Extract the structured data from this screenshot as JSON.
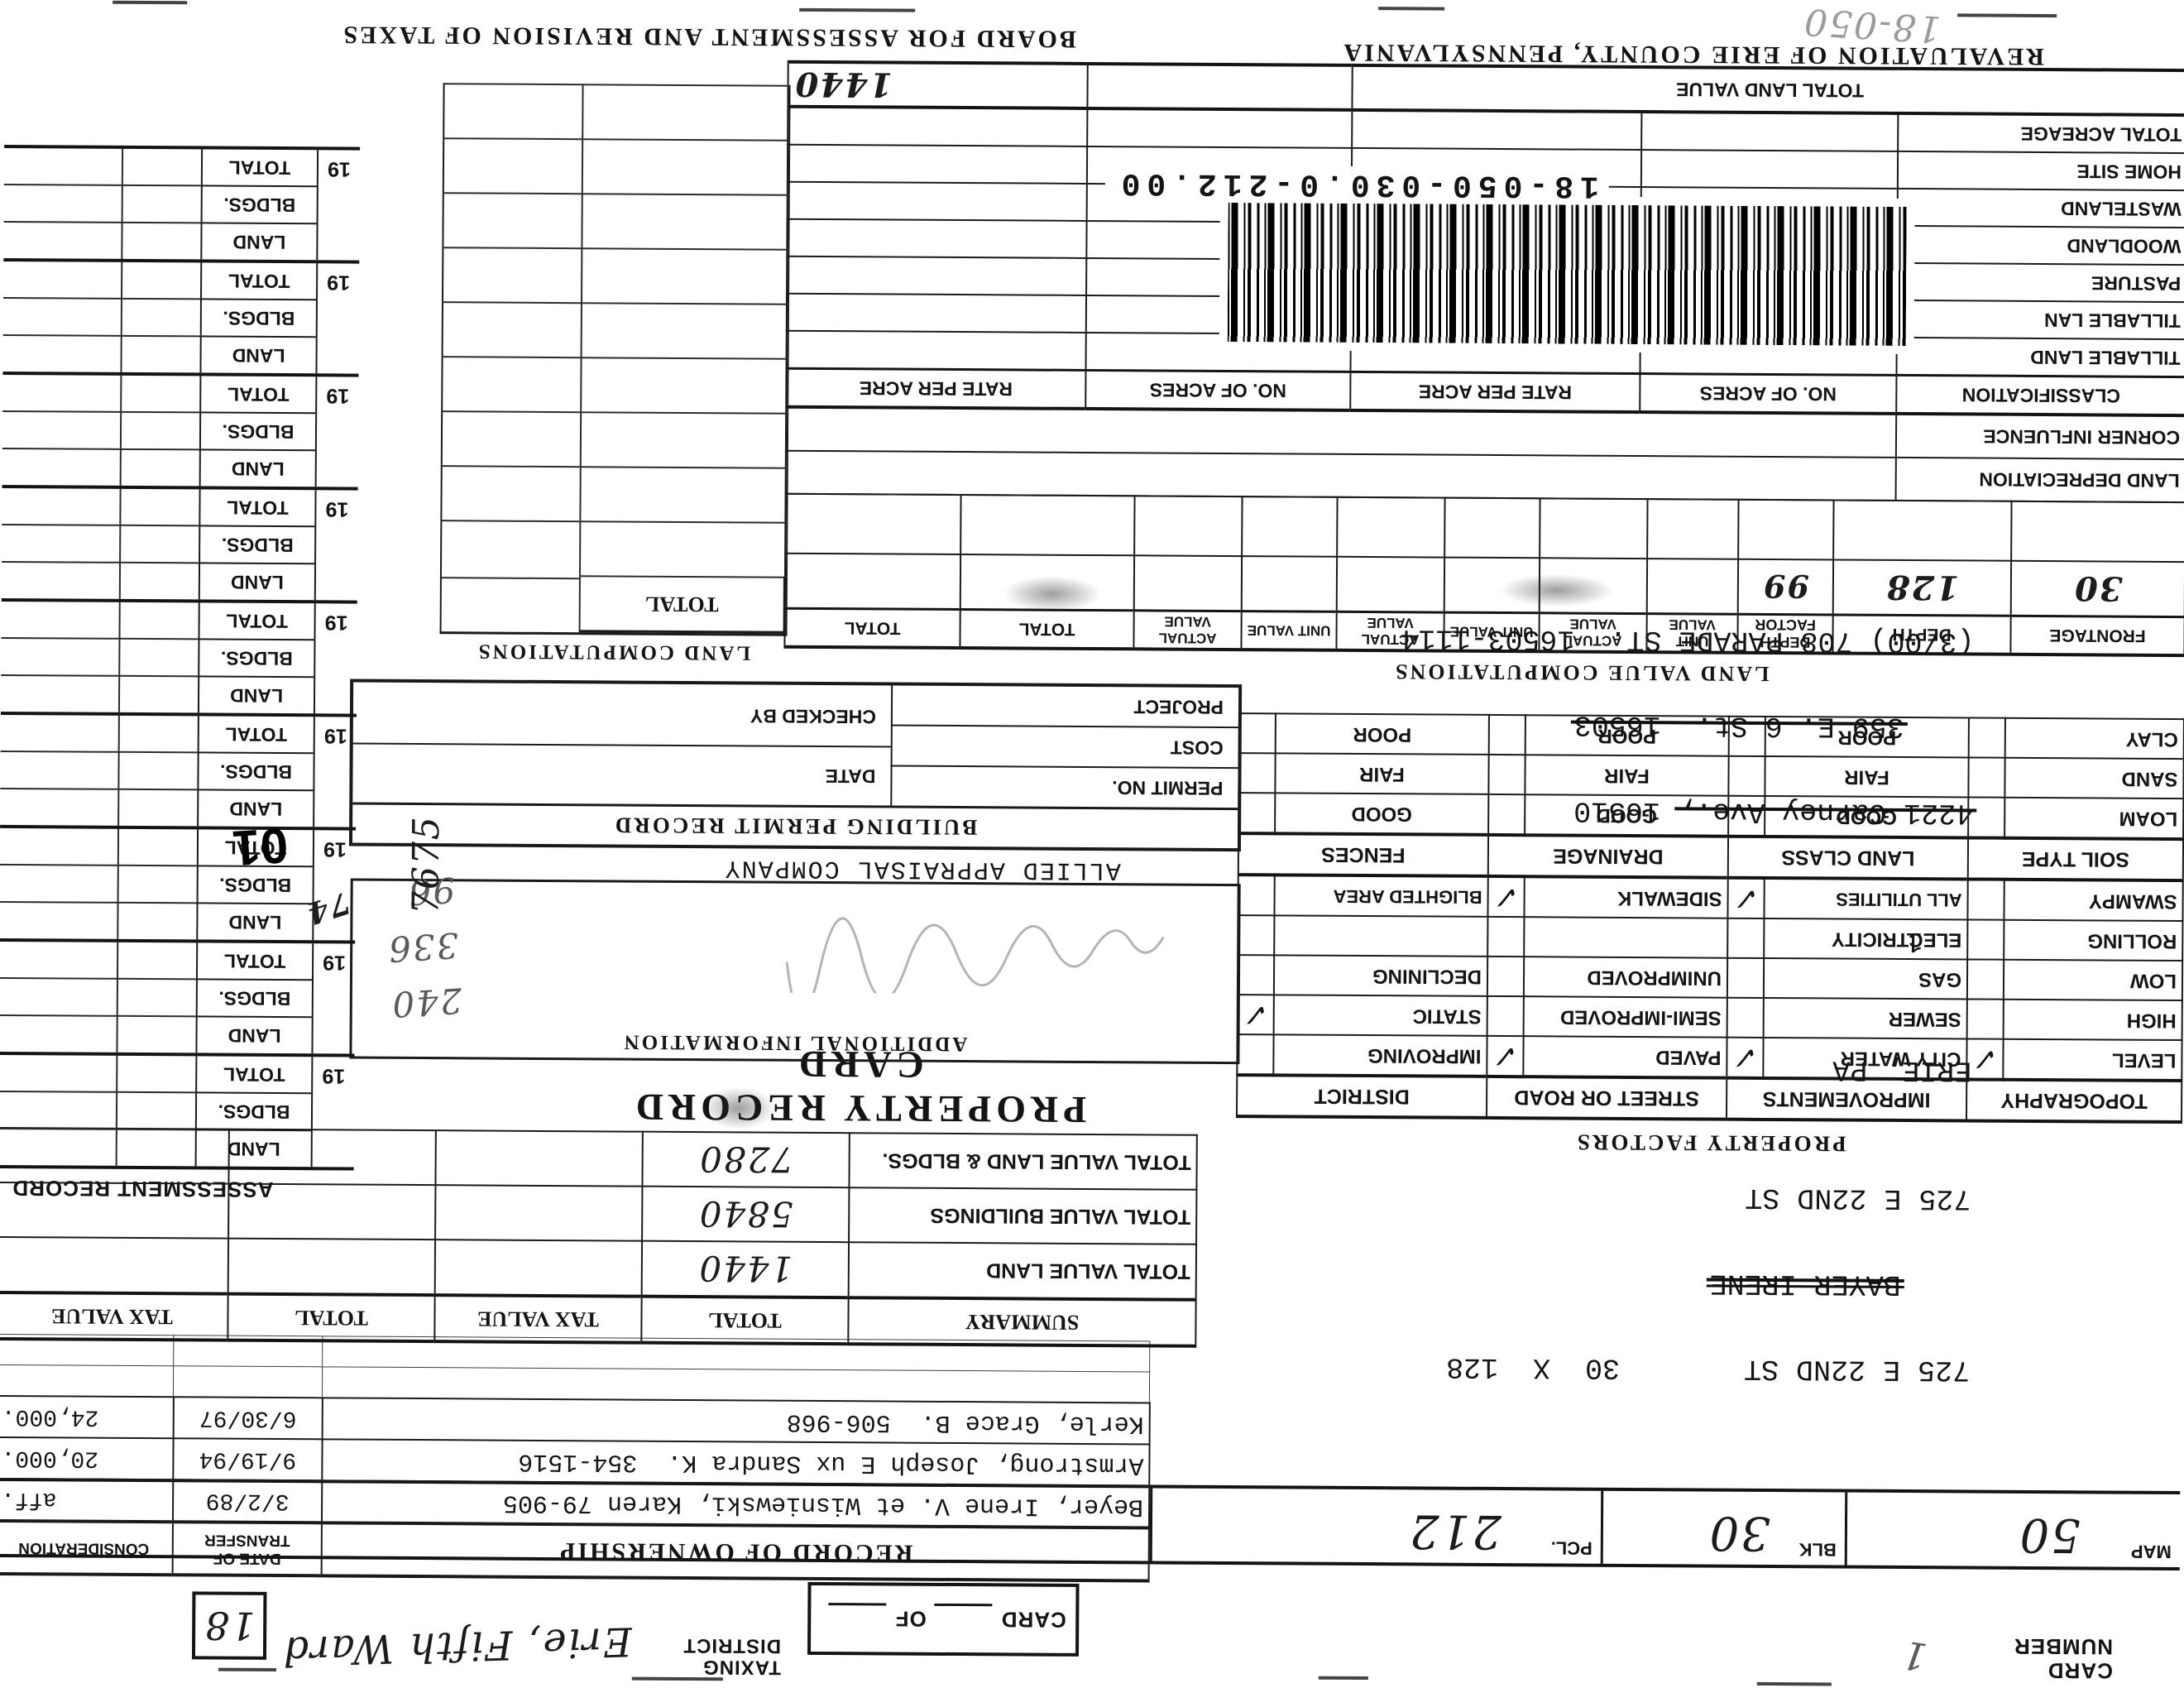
{
  "colors": {
    "paper": "#ffffff",
    "ink": "#141414",
    "pencil": "#5a5a5a"
  },
  "glyphs": {
    "check": "✓"
  },
  "titles": {
    "revaluation": "REVALUATION OF ERIE COUNTY, PENNSYLVANIA",
    "board": "BOARD FOR ASSESSMENT AND REVISION OF TAXES",
    "property_record_card": "PROPERTY RECORD CARD",
    "assessment_record": "ASSESSMENT RECORD",
    "property_factors": "PROPERTY FACTORS",
    "land_value_computations": "LAND VALUE COMPUTATIONS",
    "land_computations": "LAND COMPUTATIONS",
    "building_permit_record": "BUILDING PERMIT RECORD",
    "additional_information": "ADDITIONAL INFORMATION",
    "record_of_ownership": "RECORD OF OWNERSHIP"
  },
  "header_strip": {
    "card_number_label": "CARD NUMBER",
    "card_number_value": "1",
    "card_label": "CARD",
    "of_label": "OF",
    "taxing_district_label": "TAXING DISTRICT",
    "taxing_district_value": "Erie, Fifth Ward",
    "ward_code": "18"
  },
  "parcel_strip": {
    "map_label": "MAP",
    "map_value": "50",
    "blk_label": "BLK",
    "blk_value": "30",
    "pcl_label": "PCL.",
    "pcl_value": "212"
  },
  "address_block": {
    "property_line": "725 E 22ND ST",
    "lot_size": "30  X  128",
    "struck_owner": "BAYER IRENE",
    "mail_street": "725 E 22ND ST",
    "mail_city": "ERIE, PA",
    "unit_note": "1",
    "old_address_1_struck": "4221 Carney Ave.,",
    "old_address_1_rest": " 16510",
    "old_address_2": "359 E. 6 St.  16503",
    "new_address": "(3/00) 708 PARADE ST.  16503-1114"
  },
  "ownership": {
    "date_header": "DATE OF TRANSFER",
    "consideration_header": "CONSIDERATION",
    "rows": [
      {
        "name": "Beyer, Irene V. et Wisniewski, Karen 79-905",
        "date": "3/2/89",
        "consideration": "aff."
      },
      {
        "name": "Armstrong, Joseph E ux Sandra K.  354-1516",
        "date": "9/19/94",
        "consideration": "20,000."
      },
      {
        "name": "Kerle, Grace B.  506-968",
        "date": "6/30/97",
        "consideration": "24,000."
      }
    ]
  },
  "summary": {
    "label": "SUMMARY",
    "col_total_1": "TOTAL",
    "col_tax_1": "TAX VALUE",
    "col_total_2": "TOTAL",
    "col_tax_2": "TAX VALUE",
    "rows": [
      {
        "label": "TOTAL VALUE LAND",
        "total": "1440"
      },
      {
        "label": "TOTAL VALUE BUILDINGS",
        "total": "5840"
      },
      {
        "label": "TOTAL VALUE LAND & BLDGS.",
        "total": "7280"
      }
    ]
  },
  "property_factors": {
    "groups": [
      "TOPOGRAPHY",
      "IMPROVEMENTS",
      "STREET OR ROAD",
      "DISTRICT"
    ],
    "rows": [
      {
        "topography": "LEVEL",
        "t_check": true,
        "improvements": "CITY WATER",
        "i_check": true,
        "street": "PAVED",
        "s_check": true,
        "district": "IMPROVING",
        "d_check": false
      },
      {
        "topography": "HIGH",
        "t_check": false,
        "improvements": "SEWER",
        "i_check": false,
        "street": "SEMI-IMPROVED",
        "s_check": false,
        "district": "STATIC",
        "d_check": true
      },
      {
        "topography": "LOW",
        "t_check": false,
        "improvements": "GAS",
        "i_check": false,
        "street": "UNIMPROVED",
        "s_check": false,
        "district": "DECLINING",
        "d_check": false
      },
      {
        "topography": "ROLLING",
        "t_check": false,
        "improvements": "ELECTRICITY",
        "i_check": false,
        "street": "",
        "s_check": false,
        "district": "",
        "d_check": false
      },
      {
        "topography": "SWAMPY",
        "t_check": false,
        "improvements": "ALL UTILITIES",
        "i_check": true,
        "street": "SIDEWALK",
        "s_check": true,
        "district": "BLIGHTED AREA",
        "d_check": false
      }
    ],
    "soil_groups": [
      "SOIL TYPE",
      "LAND CLASS",
      "DRAINAGE",
      "FENCES"
    ],
    "soil_rows": [
      {
        "soil": "LOAM",
        "land_class": "GOOD",
        "drainage": "GOOD",
        "fences": "GOOD"
      },
      {
        "soil": "SAND",
        "land_class": "FAIR",
        "drainage": "FAIR",
        "fences": "FAIR"
      },
      {
        "soil": "CLAY",
        "land_class": "POOR",
        "drainage": "POOR",
        "fences": "POOR"
      }
    ]
  },
  "land_value_computations": {
    "headers": [
      "FRONTAGE",
      "DEPTH",
      "DEPTH FACTOR",
      "UNIT VALUE",
      "ACTUAL VALUE",
      "UNIT VALUE",
      "ACTUAL VALUE",
      "UNIT VALUE",
      "ACTUAL VALUE",
      "TOTAL",
      "TOTAL"
    ],
    "entry": {
      "frontage": "30",
      "depth": "128",
      "depth_factor": "99"
    }
  },
  "land_computations": {
    "total_label": "TOTAL",
    "pre_rows": [
      "LAND DEPRECIATION",
      "CORNER INFLUENCE"
    ],
    "headers": [
      "CLASSIFICATION",
      "NO. OF ACRES",
      "RATE PER ACRE",
      "NO. OF ACRES",
      "RATE PER ACRE"
    ],
    "rows": [
      "TILLABLE LAND",
      "TILLABLE LAN",
      "PASTURE",
      "WOODLAND",
      "WASTELAND",
      "HOME SITE",
      "TOTAL ACREAGE"
    ],
    "total_land_value_label": "TOTAL LAND VALUE",
    "total_land_value": "1440"
  },
  "building_permit": {
    "left_rows": [
      "PERMIT NO.",
      "COST",
      "PROJECT"
    ],
    "right_rows": [
      "DATE",
      "CHECKED BY"
    ],
    "company": "ALLIED APPRAISAL COMPANY"
  },
  "assessment": {
    "year_prefix": "19",
    "row_labels": [
      "LAND",
      "BLDGS.",
      "TOTAL"
    ],
    "block_count": 9,
    "annotated_block": 2,
    "year_note": "74",
    "stamp": "01",
    "side_number": "7675",
    "pencil_values": [
      "240",
      "336",
      "96"
    ]
  },
  "scan": {
    "barcode_number": "18-050-030.0-212.00",
    "corner_scribble": "18-050"
  }
}
